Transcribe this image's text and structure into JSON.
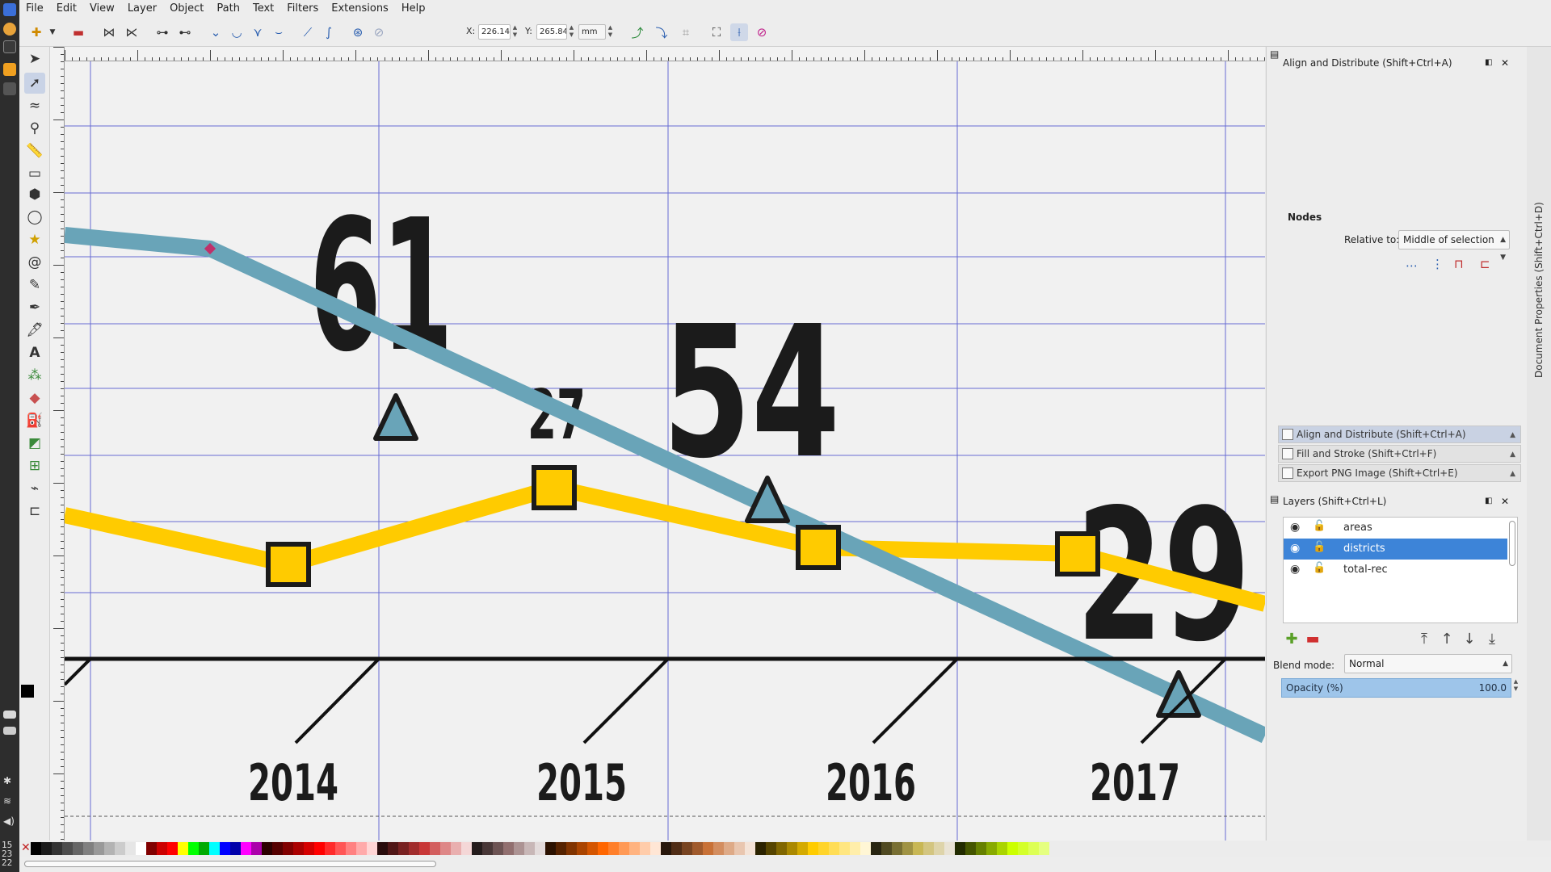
{
  "menu": {
    "items": [
      "File",
      "Edit",
      "View",
      "Layer",
      "Object",
      "Path",
      "Text",
      "Filters",
      "Extensions",
      "Help"
    ]
  },
  "toolbar": {
    "x_label": "X:",
    "x_value": "226.148",
    "y_label": "Y:",
    "y_value": "265.843",
    "unit": "mm"
  },
  "canvas": {
    "big_numbers": [
      "61",
      "54",
      "29"
    ],
    "small_number": "27",
    "year_labels": [
      "2014",
      "2015",
      "2016",
      "2017"
    ],
    "colors": {
      "teal_line": "#69a4b8",
      "yellow_line": "#ffcb00",
      "marker_fill": "#ffcb00",
      "text": "#1b1b1b",
      "guide": "#3840c8"
    }
  },
  "right_panel": {
    "align_title": "Align and Distribute (Shift+Ctrl+A)",
    "nodes_heading": "Nodes",
    "relative_to_label": "Relative to:",
    "relative_to_value": "Middle of selection",
    "docked": [
      "Align and Distribute (Shift+Ctrl+A)",
      "Fill and Stroke (Shift+Ctrl+F)",
      "Export PNG Image (Shift+Ctrl+E)"
    ],
    "layers_title": "Layers (Shift+Ctrl+L)",
    "layers": [
      {
        "name": "areas",
        "selected": false
      },
      {
        "name": "districts",
        "selected": true
      },
      {
        "name": "total-rec",
        "selected": false
      }
    ],
    "blend_label": "Blend mode:",
    "blend_value": "Normal",
    "opacity_label": "Opacity (%)",
    "opacity_value": "100.0"
  },
  "side_tab": {
    "label": "Document Properties (Shift+Ctrl+D)"
  },
  "dock_clock": {
    "lines": [
      "15",
      "23",
      "22"
    ]
  }
}
